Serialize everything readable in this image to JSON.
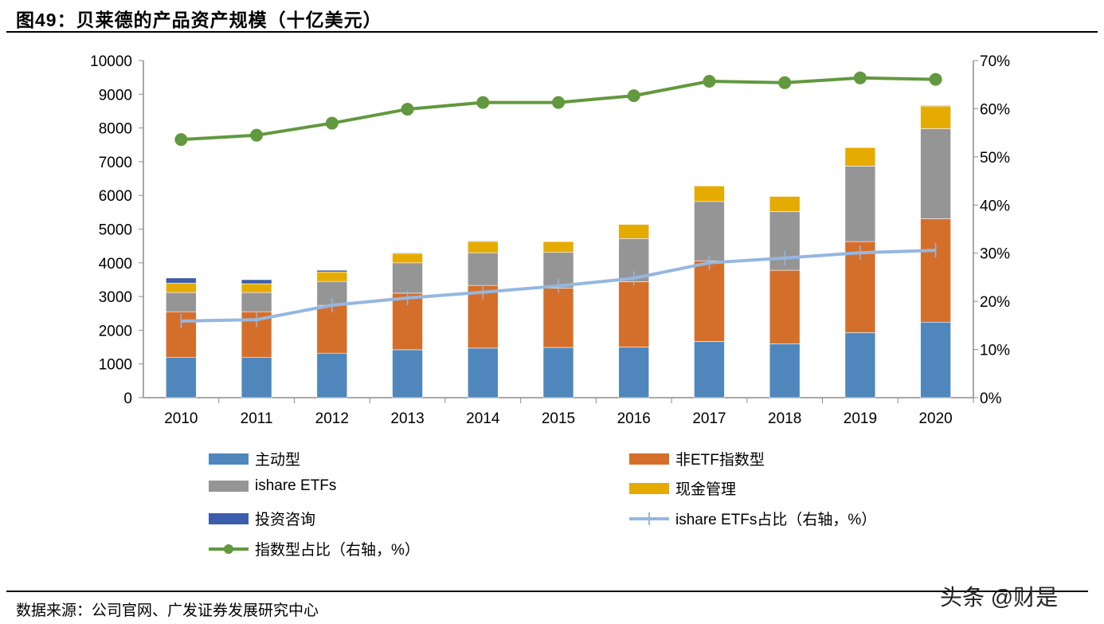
{
  "title": "图49：贝莱德的产品资产规模（十亿美元）",
  "source": "数据来源：公司官网、广发证券发展研究中心",
  "watermark": "头条 @财是",
  "chart_data": {
    "type": "bar",
    "stacked": true,
    "categories": [
      "2010",
      "2011",
      "2012",
      "2013",
      "2014",
      "2015",
      "2016",
      "2017",
      "2018",
      "2019",
      "2020"
    ],
    "ylim_left": [
      0,
      10000
    ],
    "yticks_left": [
      "0",
      "1000",
      "2000",
      "3000",
      "4000",
      "5000",
      "6000",
      "7000",
      "8000",
      "9000",
      "10000"
    ],
    "ylim_right": [
      0,
      70
    ],
    "yticks_right": [
      "0%",
      "10%",
      "20%",
      "30%",
      "40%",
      "50%",
      "60%",
      "70%"
    ],
    "grid": false,
    "legend_position": "bottom",
    "series": [
      {
        "name": "主动型",
        "type": "bar",
        "color": "#4f87bd",
        "values": [
          1200,
          1200,
          1320,
          1420,
          1470,
          1490,
          1500,
          1670,
          1600,
          1930,
          2240
        ]
      },
      {
        "name": "非ETF指数型",
        "type": "bar",
        "color": "#d46f2b",
        "values": [
          1350,
          1350,
          1420,
          1680,
          1860,
          1760,
          1940,
          2390,
          2180,
          2700,
          3070
        ]
      },
      {
        "name": "ishare ETFs",
        "type": "bar",
        "color": "#959595",
        "values": [
          570,
          570,
          710,
          900,
          970,
          1060,
          1280,
          1760,
          1740,
          2240,
          2670
        ]
      },
      {
        "name": "现金管理",
        "type": "bar",
        "color": "#e6ab00",
        "values": [
          280,
          260,
          280,
          280,
          330,
          320,
          420,
          460,
          450,
          550,
          670
        ]
      },
      {
        "name": "投资咨询",
        "type": "bar",
        "color": "#3b5daa",
        "values": [
          150,
          120,
          50,
          20,
          20,
          0,
          0,
          0,
          0,
          0,
          20
        ]
      },
      {
        "name": "ishare ETFs占比（右轴，%）",
        "type": "line",
        "axis": "right",
        "color": "#95b7e0",
        "marker": "plus",
        "values": [
          15.9,
          16.2,
          19.2,
          20.7,
          21.9,
          23.2,
          24.8,
          28.0,
          29.0,
          30.1,
          30.6
        ]
      },
      {
        "name": "指数型占比（右轴，%）",
        "type": "line",
        "axis": "right",
        "color": "#62983e",
        "marker": "circle",
        "values": [
          53.6,
          54.5,
          57.0,
          59.9,
          61.3,
          61.3,
          62.7,
          65.7,
          65.4,
          66.4,
          66.1
        ]
      }
    ]
  }
}
